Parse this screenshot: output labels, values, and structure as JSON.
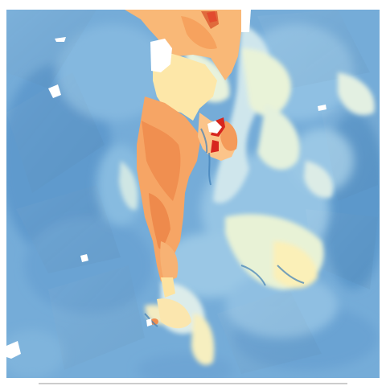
{
  "map": {
    "kind": "raster heatmap",
    "colors": {
      "background": "#ffffff",
      "deep_blue": "#4f8fc6",
      "mid_blue": "#74aedb",
      "light_blue": "#a9d0ea",
      "pale": "#e6f3ef",
      "cream": "#fff2b8",
      "peach": "#fdd49a",
      "orange": "#f7a05e",
      "dark_orange": "#ec7a45",
      "red": "#d7261e",
      "nodata": "#ffffff"
    }
  }
}
